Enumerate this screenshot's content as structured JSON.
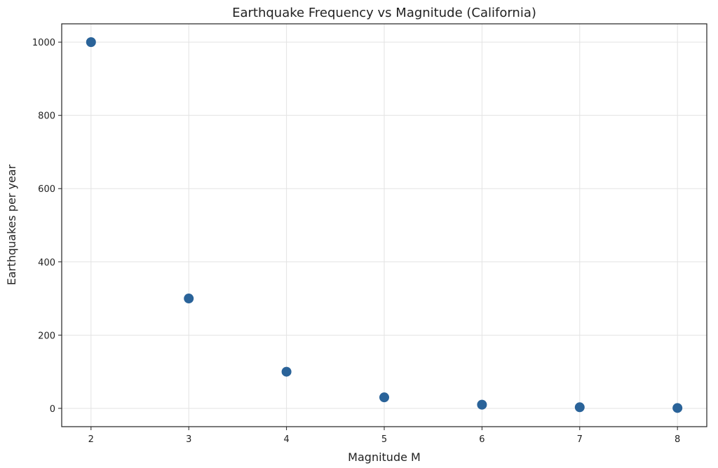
{
  "chart_data": {
    "type": "scatter",
    "title": "Earthquake Frequency vs Magnitude (California)",
    "xlabel": "Magnitude M",
    "ylabel": "Earthquakes per year",
    "x": [
      2,
      3,
      4,
      5,
      6,
      7,
      8
    ],
    "y": [
      1000,
      300,
      100,
      30,
      10,
      3,
      1
    ],
    "xticks": [
      "2",
      "3",
      "4",
      "5",
      "6",
      "7",
      "8"
    ],
    "yticks": [
      "0",
      "200",
      "400",
      "600",
      "800",
      "1000"
    ],
    "xlim": [
      1.7,
      8.3
    ],
    "ylim": [
      -50,
      1050
    ],
    "grid": true,
    "marker_color": "#2a6399",
    "legend": null
  }
}
